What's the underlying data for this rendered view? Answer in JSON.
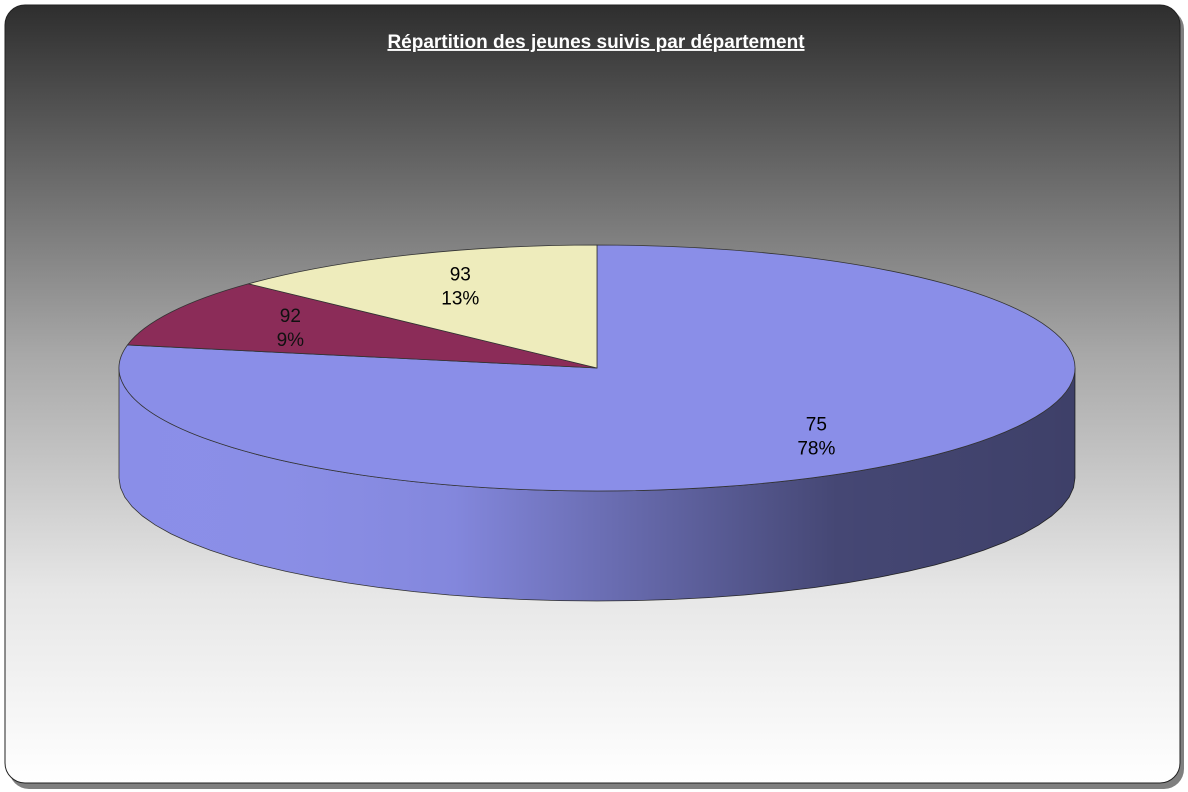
{
  "chart_data": {
    "type": "pie",
    "title": "Répartition des jeunes suivis par département",
    "categories": [
      "75",
      "92",
      "93"
    ],
    "values": [
      78,
      9,
      13
    ],
    "value_labels": [
      "78%",
      "9%",
      "13%"
    ],
    "colors": [
      "#8a8ee8",
      "#8b2c58",
      "#eeecbc"
    ]
  }
}
